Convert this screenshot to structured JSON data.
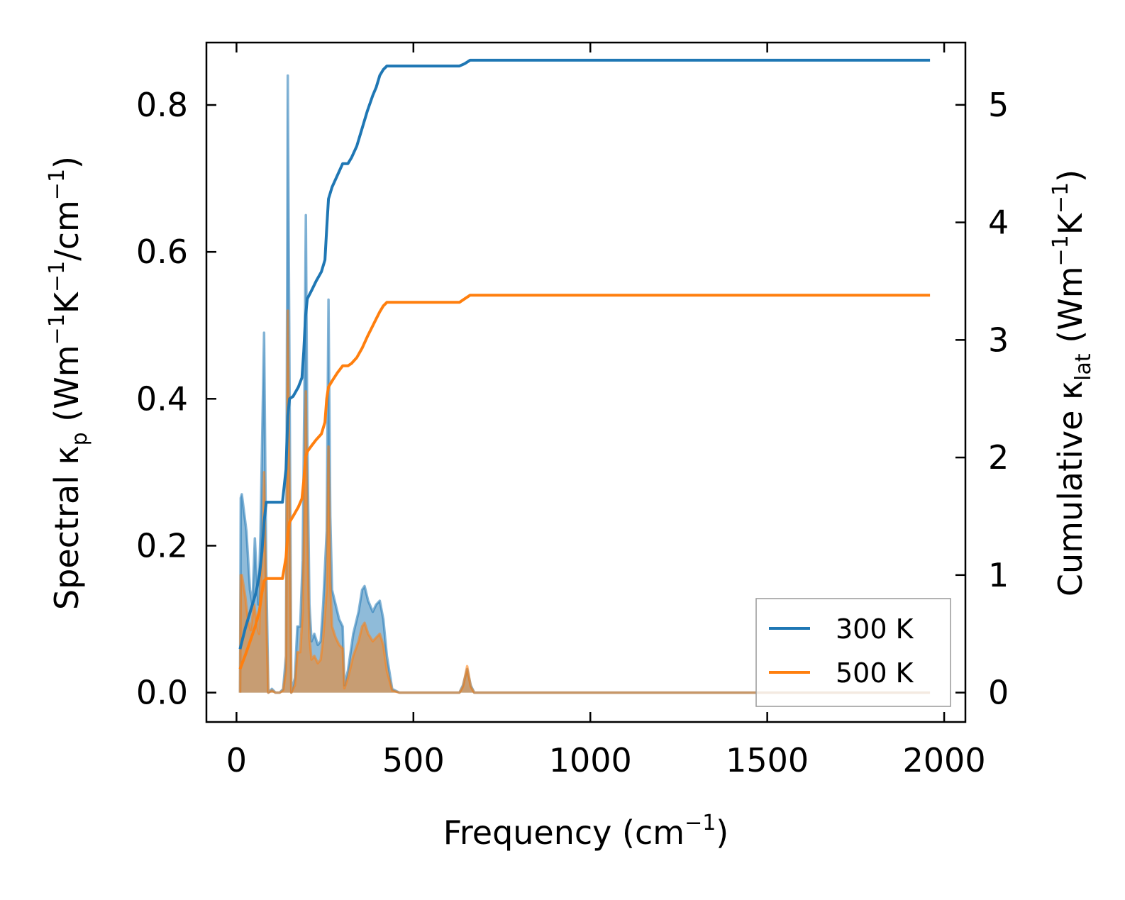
{
  "chart_data": {
    "type": "area",
    "xlabel": "Frequency (cm⁻¹)",
    "ylabel_left": "Spectral κₚ (Wm⁻¹K⁻¹/cm⁻¹)",
    "ylabel_right": "Cumulative κ_lat (Wm⁻¹K⁻¹)",
    "xlim": [
      -85,
      2060
    ],
    "ylim_left": [
      -0.04,
      0.885
    ],
    "ylim_right": [
      -0.25,
      5.53
    ],
    "x_ticks": [
      0,
      500,
      1000,
      1500,
      2000
    ],
    "x_tick_labels": [
      "0",
      "500",
      "1000",
      "1500",
      "2000"
    ],
    "y_left_ticks": [
      0.0,
      0.2,
      0.4,
      0.6,
      0.8
    ],
    "y_left_tick_labels": [
      "0.0",
      "0.2",
      "0.4",
      "0.6",
      "0.8"
    ],
    "y_right_ticks": [
      0,
      1,
      2,
      3,
      4,
      5
    ],
    "y_right_tick_labels": [
      "0",
      "1",
      "2",
      "3",
      "4",
      "5"
    ],
    "grid": false,
    "legend_position": "lower-right",
    "series": [
      {
        "name": "300 K",
        "color": "#1f77b4",
        "spectral": [
          [
            10,
            0.0
          ],
          [
            12,
            0.265
          ],
          [
            15,
            0.27
          ],
          [
            28,
            0.22
          ],
          [
            38,
            0.14
          ],
          [
            45,
            0.12
          ],
          [
            52,
            0.21
          ],
          [
            58,
            0.15
          ],
          [
            62,
            0.12
          ],
          [
            68,
            0.22
          ],
          [
            72,
            0.33
          ],
          [
            78,
            0.49
          ],
          [
            84,
            0.17
          ],
          [
            90,
            0.0
          ],
          [
            100,
            0.005
          ],
          [
            110,
            0.0
          ],
          [
            122,
            0.0
          ],
          [
            132,
            0.005
          ],
          [
            140,
            0.05
          ],
          [
            145,
            0.84
          ],
          [
            150,
            0.42
          ],
          [
            155,
            0.0
          ],
          [
            165,
            0.02
          ],
          [
            172,
            0.09
          ],
          [
            180,
            0.09
          ],
          [
            187,
            0.18
          ],
          [
            192,
            0.41
          ],
          [
            196,
            0.65
          ],
          [
            200,
            0.35
          ],
          [
            206,
            0.12
          ],
          [
            212,
            0.07
          ],
          [
            220,
            0.08
          ],
          [
            230,
            0.065
          ],
          [
            238,
            0.07
          ],
          [
            245,
            0.12
          ],
          [
            255,
            0.22
          ],
          [
            260,
            0.535
          ],
          [
            265,
            0.24
          ],
          [
            270,
            0.14
          ],
          [
            280,
            0.12
          ],
          [
            290,
            0.1
          ],
          [
            300,
            0.09
          ],
          [
            305,
            0.01
          ],
          [
            315,
            0.03
          ],
          [
            330,
            0.08
          ],
          [
            345,
            0.11
          ],
          [
            355,
            0.14
          ],
          [
            362,
            0.145
          ],
          [
            372,
            0.125
          ],
          [
            385,
            0.11
          ],
          [
            395,
            0.12
          ],
          [
            405,
            0.125
          ],
          [
            415,
            0.1
          ],
          [
            425,
            0.05
          ],
          [
            440,
            0.005
          ],
          [
            460,
            0.0
          ],
          [
            630,
            0.0
          ],
          [
            640,
            0.01
          ],
          [
            652,
            0.032
          ],
          [
            662,
            0.01
          ],
          [
            672,
            0.0
          ],
          [
            1960,
            0.0
          ]
        ],
        "cumulative": [
          [
            10,
            0.37
          ],
          [
            25,
            0.55
          ],
          [
            40,
            0.7
          ],
          [
            55,
            0.85
          ],
          [
            65,
            1.0
          ],
          [
            72,
            1.2
          ],
          [
            78,
            1.45
          ],
          [
            84,
            1.62
          ],
          [
            90,
            1.62
          ],
          [
            130,
            1.62
          ],
          [
            140,
            1.9
          ],
          [
            145,
            2.35
          ],
          [
            150,
            2.5
          ],
          [
            160,
            2.52
          ],
          [
            175,
            2.6
          ],
          [
            185,
            2.68
          ],
          [
            190,
            2.9
          ],
          [
            195,
            3.2
          ],
          [
            200,
            3.35
          ],
          [
            212,
            3.42
          ],
          [
            225,
            3.5
          ],
          [
            240,
            3.58
          ],
          [
            250,
            3.68
          ],
          [
            255,
            3.95
          ],
          [
            260,
            4.2
          ],
          [
            270,
            4.3
          ],
          [
            285,
            4.4
          ],
          [
            300,
            4.5
          ],
          [
            315,
            4.5
          ],
          [
            325,
            4.55
          ],
          [
            340,
            4.65
          ],
          [
            355,
            4.8
          ],
          [
            370,
            4.95
          ],
          [
            385,
            5.08
          ],
          [
            395,
            5.15
          ],
          [
            405,
            5.25
          ],
          [
            415,
            5.3
          ],
          [
            425,
            5.33
          ],
          [
            600,
            5.33
          ],
          [
            630,
            5.33
          ],
          [
            645,
            5.35
          ],
          [
            660,
            5.38
          ],
          [
            680,
            5.38
          ],
          [
            1960,
            5.38
          ]
        ]
      },
      {
        "name": "500 K",
        "color": "#ff7f0e",
        "spectral": [
          [
            10,
            0.0
          ],
          [
            12,
            0.16
          ],
          [
            15,
            0.16
          ],
          [
            25,
            0.13
          ],
          [
            32,
            0.1
          ],
          [
            40,
            0.085
          ],
          [
            50,
            0.12
          ],
          [
            58,
            0.09
          ],
          [
            64,
            0.08
          ],
          [
            70,
            0.17
          ],
          [
            74,
            0.2
          ],
          [
            78,
            0.3
          ],
          [
            84,
            0.1
          ],
          [
            90,
            0.0
          ],
          [
            100,
            0.003
          ],
          [
            110,
            0.0
          ],
          [
            122,
            0.0
          ],
          [
            132,
            0.003
          ],
          [
            140,
            0.03
          ],
          [
            145,
            0.52
          ],
          [
            150,
            0.26
          ],
          [
            155,
            0.0
          ],
          [
            165,
            0.01
          ],
          [
            172,
            0.055
          ],
          [
            180,
            0.055
          ],
          [
            187,
            0.11
          ],
          [
            192,
            0.25
          ],
          [
            196,
            0.41
          ],
          [
            200,
            0.22
          ],
          [
            206,
            0.075
          ],
          [
            212,
            0.045
          ],
          [
            220,
            0.05
          ],
          [
            230,
            0.04
          ],
          [
            238,
            0.045
          ],
          [
            245,
            0.075
          ],
          [
            255,
            0.14
          ],
          [
            260,
            0.335
          ],
          [
            265,
            0.15
          ],
          [
            270,
            0.09
          ],
          [
            280,
            0.075
          ],
          [
            290,
            0.065
          ],
          [
            300,
            0.06
          ],
          [
            305,
            0.006
          ],
          [
            315,
            0.02
          ],
          [
            330,
            0.05
          ],
          [
            345,
            0.07
          ],
          [
            355,
            0.09
          ],
          [
            362,
            0.095
          ],
          [
            372,
            0.08
          ],
          [
            385,
            0.07
          ],
          [
            395,
            0.075
          ],
          [
            405,
            0.08
          ],
          [
            415,
            0.065
          ],
          [
            425,
            0.03
          ],
          [
            440,
            0.003
          ],
          [
            460,
            0.0
          ],
          [
            630,
            0.0
          ],
          [
            640,
            0.008
          ],
          [
            652,
            0.036
          ],
          [
            662,
            0.008
          ],
          [
            672,
            0.0
          ],
          [
            1960,
            0.0
          ]
        ],
        "cumulative": [
          [
            10,
            0.2
          ],
          [
            25,
            0.32
          ],
          [
            40,
            0.45
          ],
          [
            55,
            0.58
          ],
          [
            65,
            0.7
          ],
          [
            72,
            0.85
          ],
          [
            78,
            0.95
          ],
          [
            84,
            0.97
          ],
          [
            90,
            0.97
          ],
          [
            130,
            0.97
          ],
          [
            140,
            1.15
          ],
          [
            145,
            1.35
          ],
          [
            150,
            1.45
          ],
          [
            160,
            1.5
          ],
          [
            175,
            1.58
          ],
          [
            185,
            1.65
          ],
          [
            190,
            1.8
          ],
          [
            195,
            2.0
          ],
          [
            200,
            2.05
          ],
          [
            212,
            2.1
          ],
          [
            225,
            2.15
          ],
          [
            240,
            2.2
          ],
          [
            250,
            2.3
          ],
          [
            255,
            2.5
          ],
          [
            260,
            2.6
          ],
          [
            270,
            2.65
          ],
          [
            285,
            2.72
          ],
          [
            300,
            2.78
          ],
          [
            315,
            2.78
          ],
          [
            325,
            2.8
          ],
          [
            340,
            2.85
          ],
          [
            355,
            2.93
          ],
          [
            370,
            3.03
          ],
          [
            385,
            3.12
          ],
          [
            395,
            3.18
          ],
          [
            405,
            3.24
          ],
          [
            415,
            3.29
          ],
          [
            425,
            3.32
          ],
          [
            600,
            3.32
          ],
          [
            630,
            3.32
          ],
          [
            645,
            3.35
          ],
          [
            660,
            3.38
          ],
          [
            680,
            3.38
          ],
          [
            1960,
            3.38
          ]
        ]
      }
    ]
  }
}
